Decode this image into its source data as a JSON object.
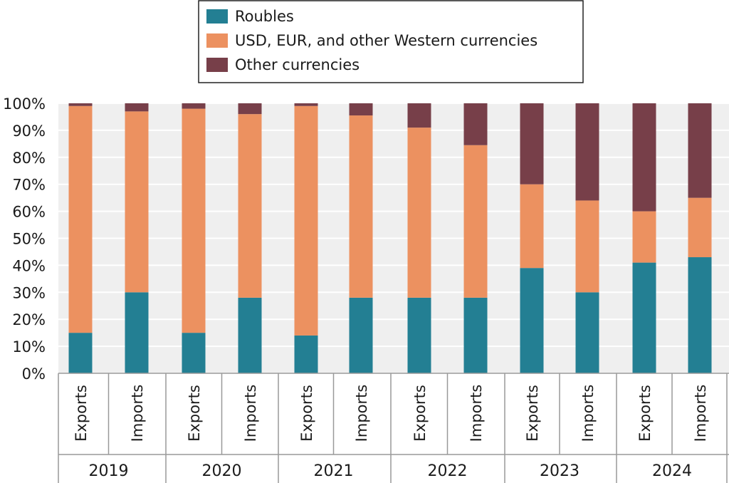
{
  "chart_data": {
    "type": "bar",
    "stacked": true,
    "categories": [
      {
        "year": "2019",
        "flow": "Exports"
      },
      {
        "year": "2019",
        "flow": "Imports"
      },
      {
        "year": "2020",
        "flow": "Exports"
      },
      {
        "year": "2020",
        "flow": "Imports"
      },
      {
        "year": "2021",
        "flow": "Exports"
      },
      {
        "year": "2021",
        "flow": "Imports"
      },
      {
        "year": "2022",
        "flow": "Exports"
      },
      {
        "year": "2022",
        "flow": "Imports"
      },
      {
        "year": "2023",
        "flow": "Exports"
      },
      {
        "year": "2023",
        "flow": "Imports"
      },
      {
        "year": "2024",
        "flow": "Exports"
      },
      {
        "year": "2024",
        "flow": "Imports"
      }
    ],
    "years": [
      "2019",
      "2020",
      "2021",
      "2022",
      "2023",
      "2024"
    ],
    "series": [
      {
        "name": "Roubles",
        "color": "#237f93",
        "values": [
          15,
          30,
          15,
          28,
          14,
          28,
          28,
          28,
          39,
          30,
          41,
          43
        ]
      },
      {
        "name": "USD, EUR, and other Western currencies",
        "color": "#ec9160",
        "values": [
          84,
          67,
          83,
          68,
          85,
          67.5,
          63,
          56.5,
          31,
          34,
          19,
          22
        ]
      },
      {
        "name": "Other currencies",
        "color": "#773f49",
        "values": [
          1,
          3,
          2,
          4,
          1,
          4.5,
          9,
          15.5,
          30,
          36,
          40,
          35
        ]
      }
    ],
    "yticks": [
      "0%",
      "10%",
      "20%",
      "30%",
      "40%",
      "50%",
      "60%",
      "70%",
      "80%",
      "90%",
      "100%"
    ],
    "ylim": [
      0,
      100
    ],
    "grid": true,
    "legend": "top-center"
  }
}
